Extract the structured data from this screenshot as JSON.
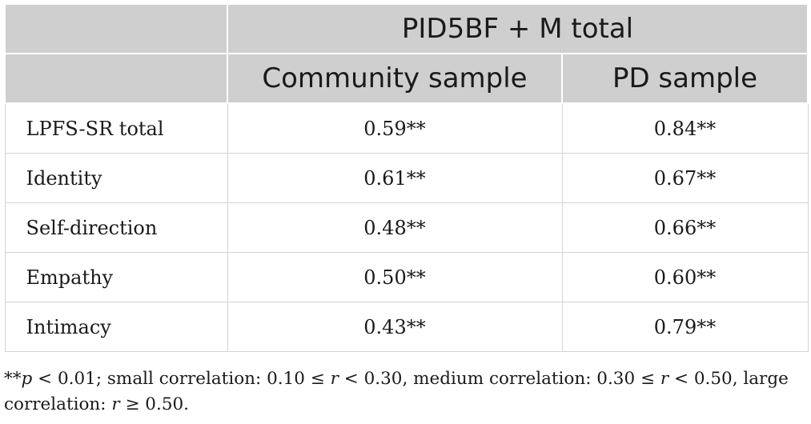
{
  "table": {
    "group_header": "PID5BF + M total",
    "columns": [
      "Community sample",
      "PD sample"
    ],
    "rows": [
      {
        "label": "LPFS-SR total",
        "community": "0.59**",
        "pd": "0.84**"
      },
      {
        "label": "Identity",
        "community": "0.61**",
        "pd": "0.67**"
      },
      {
        "label": "Self-direction",
        "community": "0.48**",
        "pd": "0.66**"
      },
      {
        "label": "Empathy",
        "community": "0.50**",
        "pd": "0.60**"
      },
      {
        "label": "Intimacy",
        "community": "0.43**",
        "pd": "0.79**"
      }
    ]
  },
  "footnote": {
    "stars": "**",
    "p": "p",
    "rest1": " < 0.01; small correlation: 0.10 ≤ ",
    "r1": "r",
    "rest2": " < 0.30, medium correlation: 0.30 ≤ ",
    "r2": "r",
    "rest3": " < 0.50, large correlation: ",
    "r3": "r",
    "rest4": " ≥ 0.50."
  }
}
